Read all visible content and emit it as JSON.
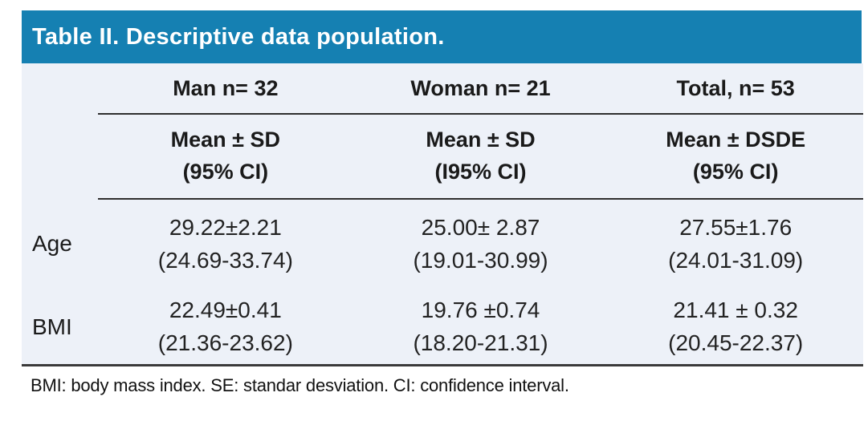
{
  "title": "Table II. Descriptive data population.",
  "colors": {
    "header_bg": "#1580b2",
    "header_text": "#ffffff",
    "table_bg": "#edf1f8",
    "rule_color": "#2e2e2e",
    "body_text": "#1a1a1a"
  },
  "table": {
    "columns": [
      {
        "label": "Man n= 32",
        "sub_line1": "Mean ± SD",
        "sub_line2": "(95% CI)"
      },
      {
        "label": "Woman n= 21",
        "sub_line1": "Mean ± SD",
        "sub_line2": "(I95% CI)"
      },
      {
        "label": "Total, n= 53",
        "sub_line1": "Mean ± DSDE",
        "sub_line2": "(95% CI)"
      }
    ],
    "rows": [
      {
        "label": "Age",
        "values": [
          {
            "mean": "29.22±2.21",
            "ci": "(24.69-33.74)"
          },
          {
            "mean": "25.00± 2.87",
            "ci": "(19.01-30.99)"
          },
          {
            "mean": "27.55±1.76",
            "ci": "(24.01-31.09)"
          }
        ]
      },
      {
        "label": "BMI",
        "values": [
          {
            "mean": "22.49±0.41",
            "ci": "(21.36-23.62)"
          },
          {
            "mean": "19.76 ±0.74",
            "ci": "(18.20-21.31)"
          },
          {
            "mean": "21.41 ± 0.32",
            "ci": "(20.45-22.37)"
          }
        ]
      }
    ]
  },
  "footnote": "BMI: body mass index. SE: standar desviation. CI: confidence interval."
}
